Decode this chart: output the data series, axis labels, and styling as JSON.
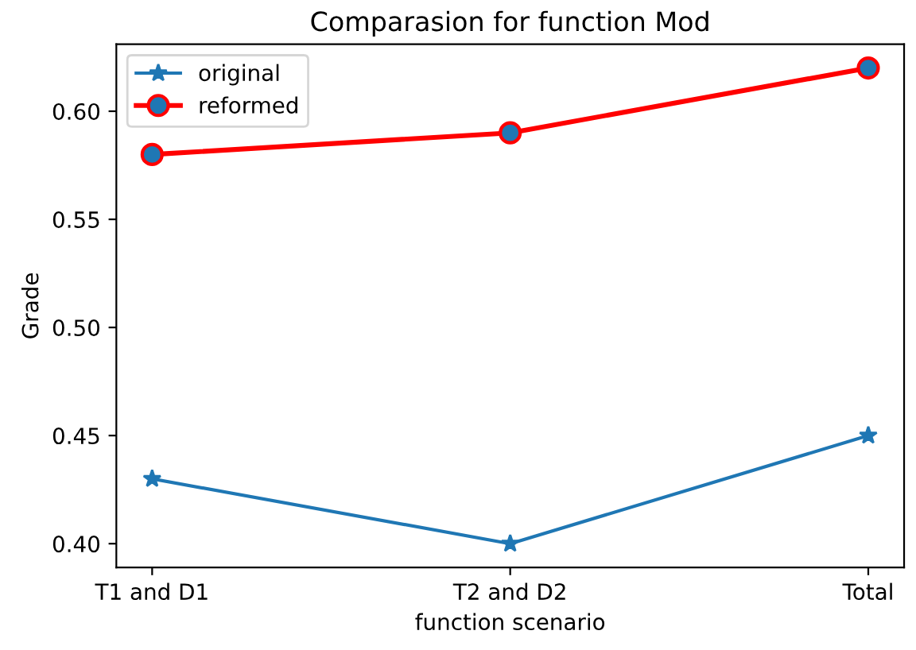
{
  "chart_data": {
    "type": "line",
    "title": "Comparasion for function Mod",
    "xlabel": "function scenario",
    "ylabel": "Grade",
    "categories": [
      "T1 and D1",
      "T2 and D2",
      "Total"
    ],
    "series": [
      {
        "name": "original",
        "color": "#1f77b4",
        "values": [
          0.43,
          0.4,
          0.45
        ],
        "marker": "star"
      },
      {
        "name": "reformed",
        "color": "#ff0000",
        "values": [
          0.58,
          0.59,
          0.62
        ],
        "marker": "circle"
      }
    ],
    "ylim": [
      0.389,
      0.631
    ],
    "yticks": [
      {
        "value": 0.4,
        "label": "0.40"
      },
      0.45,
      {
        "value": 0.5,
        "label": "0.50"
      },
      0.55,
      {
        "value": 0.6,
        "label": "0.60"
      }
    ],
    "legend": "top left",
    "grid": false,
    "line_style": "solid"
  }
}
